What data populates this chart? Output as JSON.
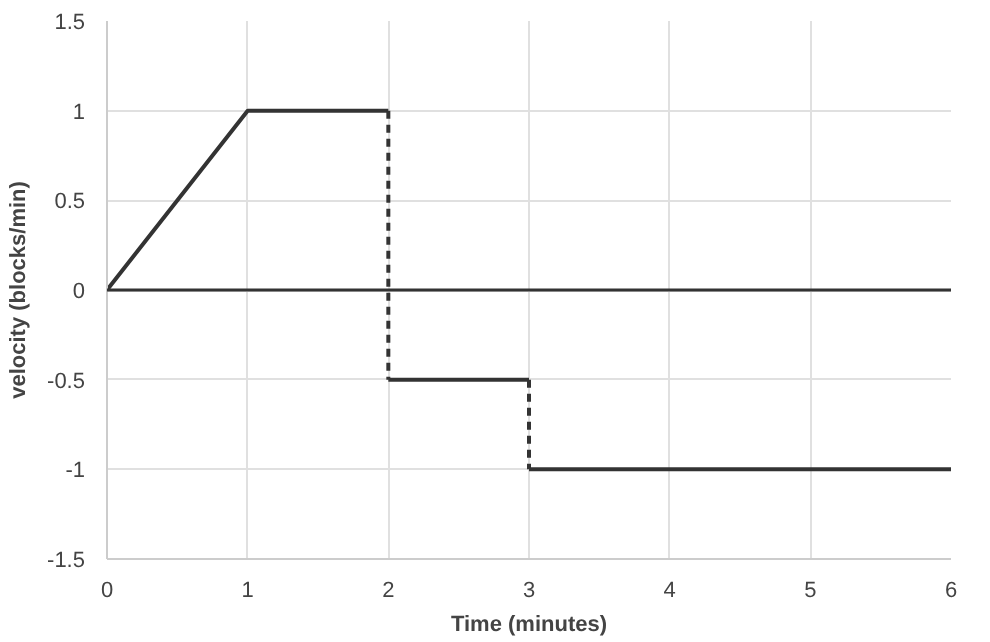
{
  "chart_data": {
    "type": "line",
    "xlabel": "Time (minutes)",
    "ylabel": "velocity (blocks/min)",
    "xlim": [
      0,
      6
    ],
    "ylim": [
      -1.5,
      1.5
    ],
    "xticks": [
      0,
      1,
      2,
      3,
      4,
      5,
      6
    ],
    "yticks": [
      -1.5,
      -1,
      -0.5,
      0,
      0.5,
      1,
      1.5
    ],
    "grid": true,
    "marker": "none",
    "series": [
      {
        "color": "#333333",
        "line_style": "solid",
        "x": [
          0,
          1,
          2
        ],
        "values": [
          0,
          1,
          1
        ]
      },
      {
        "color": "#333333",
        "line_style": "dashed",
        "x": [
          2,
          2
        ],
        "values": [
          1,
          -0.5
        ]
      },
      {
        "color": "#333333",
        "line_style": "solid",
        "x": [
          2,
          3
        ],
        "values": [
          -0.5,
          -0.5
        ]
      },
      {
        "color": "#333333",
        "line_style": "dashed",
        "x": [
          3,
          3
        ],
        "values": [
          -0.5,
          -1
        ]
      },
      {
        "color": "#333333",
        "line_style": "solid",
        "x": [
          3,
          6
        ],
        "values": [
          -1,
          -1
        ]
      }
    ],
    "ref_lines": [
      {
        "axis": "y",
        "value": 0,
        "color": "#333333",
        "line_style": "solid"
      }
    ]
  }
}
